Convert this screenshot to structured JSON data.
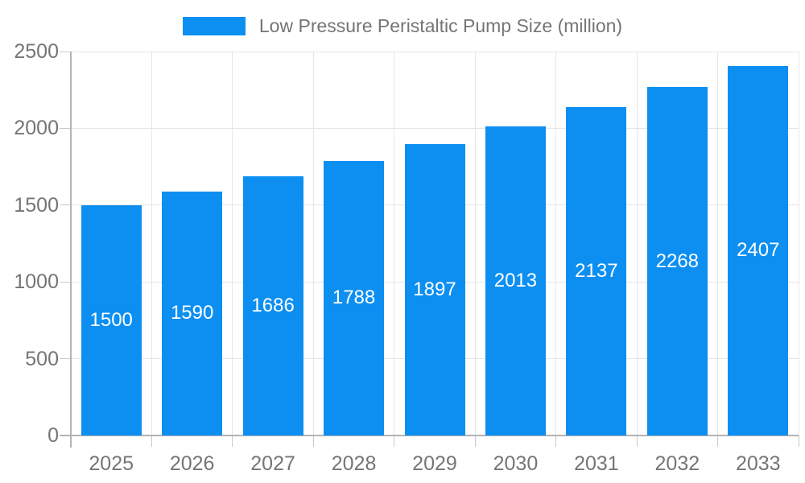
{
  "chart_data": {
    "type": "bar",
    "title": "Low Pressure Peristaltic Pump Size (million)",
    "categories": [
      "2025",
      "2026",
      "2027",
      "2028",
      "2029",
      "2030",
      "2031",
      "2032",
      "2033"
    ],
    "series": [
      {
        "name": "Low Pressure Peristaltic Pump Size (million)",
        "values": [
          1500,
          1590,
          1686,
          1788,
          1897,
          2013,
          2137,
          2268,
          2407
        ]
      }
    ],
    "xlabel": "",
    "ylabel": "",
    "ylim": [
      0,
      2500
    ],
    "yticks": [
      0,
      500,
      1000,
      1500,
      2000,
      2500
    ],
    "grid": true,
    "legend_position": "top",
    "bar_value_labels": "centered-inside-bars",
    "colors": {
      "bar": "#0d8ff2",
      "bar_label": "#ffffff",
      "grid_line": "#e6e6e6",
      "axis_line": "#b3b3b3",
      "tick_line": "#c9c9c9",
      "text": "#757575",
      "background": "#ffffff"
    }
  }
}
